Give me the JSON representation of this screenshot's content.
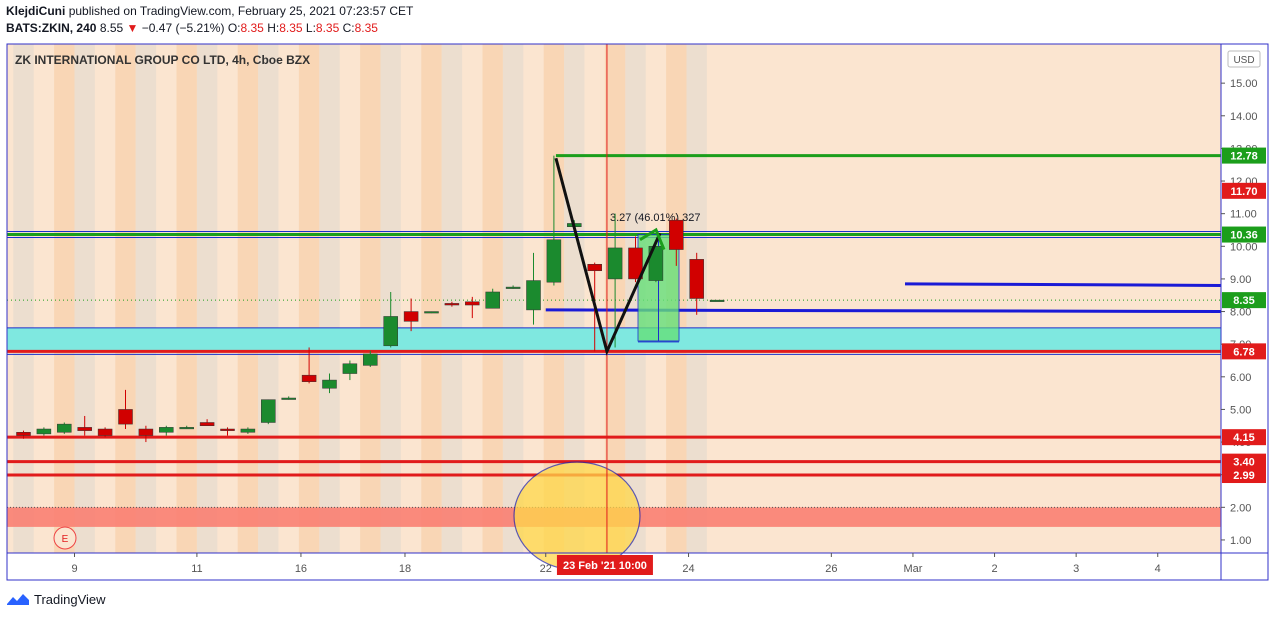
{
  "header": {
    "author": "KlejdiCuni",
    "published_text": "published on TradingView.com, February 25, 2021 07:23:57 CET",
    "symbol": "BATS:ZKIN, 240",
    "last": "8.55",
    "change_arrow": "▼",
    "change": "−0.47 (−5.21%)",
    "o_label": "O:",
    "o_value": "8.35",
    "h_label": "H:",
    "h_value": "8.35",
    "l_label": "L:",
    "l_value": "8.35",
    "c_label": "C:",
    "c_value": "8.35"
  },
  "footer": {
    "brand": "TradingView"
  },
  "chart_data": {
    "type": "candlestick",
    "title": "ZK INTERNATIONAL GROUP CO LTD, 4h, Cboe BZX",
    "currency": "USD",
    "ylim": [
      0.6,
      16.2
    ],
    "y_ticks": [
      "1.00",
      "2.00",
      "3.00",
      "4.00",
      "5.00",
      "6.00",
      "7.00",
      "8.00",
      "9.00",
      "10.00",
      "11.00",
      "12.00",
      "13.00",
      "14.00",
      "15.00"
    ],
    "x_ticks": [
      {
        "label": "9",
        "bar": 2.5
      },
      {
        "label": "11",
        "bar": 8.5
      },
      {
        "label": "16",
        "bar": 13.6
      },
      {
        "label": "18",
        "bar": 18.7
      },
      {
        "label": "22",
        "bar": 25.6
      },
      {
        "label": "24",
        "bar": 32.6
      },
      {
        "label": "26",
        "bar": 39.6
      },
      {
        "label": "Mar",
        "bar": 43.6
      },
      {
        "label": "2",
        "bar": 47.6
      },
      {
        "label": "3",
        "bar": 51.6
      },
      {
        "label": "4",
        "bar": 55.6
      }
    ],
    "crosshair": {
      "label": "23 Feb '21   10:00",
      "bar": 28.6
    },
    "candles": [
      {
        "o": 4.3,
        "h": 4.35,
        "l": 4.1,
        "c": 4.2
      },
      {
        "o": 4.25,
        "h": 4.45,
        "l": 4.2,
        "c": 4.4
      },
      {
        "o": 4.3,
        "h": 4.6,
        "l": 4.25,
        "c": 4.55
      },
      {
        "o": 4.45,
        "h": 4.8,
        "l": 4.2,
        "c": 4.35
      },
      {
        "o": 4.4,
        "h": 4.45,
        "l": 4.15,
        "c": 4.2
      },
      {
        "o": 5.0,
        "h": 5.6,
        "l": 4.4,
        "c": 4.55
      },
      {
        "o": 4.4,
        "h": 4.5,
        "l": 4.0,
        "c": 4.2
      },
      {
        "o": 4.3,
        "h": 4.5,
        "l": 4.2,
        "c": 4.45
      },
      {
        "o": 4.45,
        "h": 4.5,
        "l": 4.4,
        "c": 4.45
      },
      {
        "o": 4.6,
        "h": 4.7,
        "l": 4.5,
        "c": 4.5
      },
      {
        "o": 4.4,
        "h": 4.45,
        "l": 4.2,
        "c": 4.35
      },
      {
        "o": 4.3,
        "h": 4.45,
        "l": 4.25,
        "c": 4.4
      },
      {
        "o": 4.6,
        "h": 5.3,
        "l": 4.55,
        "c": 5.3
      },
      {
        "o": 5.35,
        "h": 5.4,
        "l": 5.3,
        "c": 5.35
      },
      {
        "o": 6.05,
        "h": 6.9,
        "l": 5.8,
        "c": 5.85
      },
      {
        "o": 5.65,
        "h": 6.1,
        "l": 5.5,
        "c": 5.9
      },
      {
        "o": 6.1,
        "h": 6.5,
        "l": 5.9,
        "c": 6.4
      },
      {
        "o": 6.35,
        "h": 6.8,
        "l": 6.3,
        "c": 6.7
      },
      {
        "o": 6.95,
        "h": 8.6,
        "l": 6.9,
        "c": 7.85
      },
      {
        "o": 8.0,
        "h": 8.4,
        "l": 7.4,
        "c": 7.7
      },
      {
        "o": 8.0,
        "h": 8.0,
        "l": 7.95,
        "c": 8.0
      },
      {
        "o": 8.25,
        "h": 8.3,
        "l": 8.15,
        "c": 8.2
      },
      {
        "o": 8.3,
        "h": 8.45,
        "l": 7.8,
        "c": 8.2
      },
      {
        "o": 8.1,
        "h": 8.7,
        "l": 8.1,
        "c": 8.6
      },
      {
        "o": 8.75,
        "h": 8.8,
        "l": 8.7,
        "c": 8.75
      },
      {
        "o": 8.05,
        "h": 9.8,
        "l": 7.6,
        "c": 8.95
      },
      {
        "o": 8.9,
        "h": 12.78,
        "l": 8.8,
        "c": 10.2
      },
      {
        "o": 10.6,
        "h": 10.8,
        "l": 10.45,
        "c": 10.7
      },
      {
        "o": 9.45,
        "h": 9.5,
        "l": 6.78,
        "c": 9.25
      },
      {
        "o": 9.0,
        "h": 11.0,
        "l": 6.9,
        "c": 9.95
      },
      {
        "o": 9.95,
        "h": 10.3,
        "l": 8.9,
        "c": 9.0
      },
      {
        "o": 8.95,
        "h": 10.0,
        "l": 8.9,
        "c": 10.0
      },
      {
        "o": 10.8,
        "h": 10.85,
        "l": 9.4,
        "c": 9.9
      },
      {
        "o": 9.6,
        "h": 9.8,
        "l": 7.9,
        "c": 8.4
      },
      {
        "o": 8.35,
        "h": 8.35,
        "l": 8.35,
        "c": 8.35
      }
    ],
    "horizontal_levels": [
      {
        "value": 12.78,
        "color": "#1b9e1b",
        "label": "12.78"
      },
      {
        "value": 10.36,
        "color": "#1b9e1b",
        "label": "10.36"
      },
      {
        "value": 6.78,
        "color": "#e11b1b",
        "label": "6.78"
      },
      {
        "value": 4.15,
        "color": "#e11b1b",
        "label": "4.15"
      },
      {
        "value": 3.4,
        "color": "#e11b1b",
        "label": "3.40"
      },
      {
        "value": 2.99,
        "color": "#e11b1b",
        "label": "2.99"
      }
    ],
    "price_tags": [
      {
        "value": 11.7,
        "color": "#e11b1b",
        "label": "11.70"
      },
      {
        "value": 8.35,
        "color": "#1b9e1b",
        "label": "8.35"
      }
    ],
    "measurement": {
      "label": "3.27 (46.01%) 327",
      "from": 7.1,
      "to": 10.36
    },
    "marker_label": "E",
    "support_zone": [
      6.78,
      7.5
    ],
    "red_zone": [
      1.4,
      2.0
    ]
  }
}
